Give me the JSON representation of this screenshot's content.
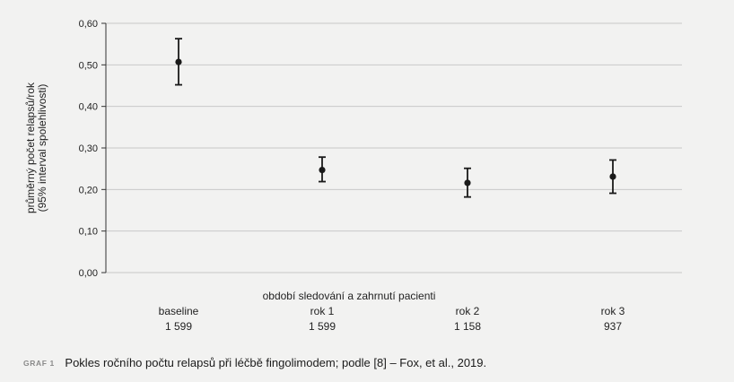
{
  "chart_data": {
    "type": "scatter",
    "ylabel_line1": "průměrný počet relapsů/rok",
    "ylabel_line2": "(95% interval spolehlivosti)",
    "xlabel": "období sledování a zahrnutí pacienti",
    "ylim": [
      0,
      0.6
    ],
    "yticks": [
      "0,00",
      "0,10",
      "0,20",
      "0,30",
      "0,40",
      "0,50",
      "0,60"
    ],
    "grid": true,
    "colors": {
      "marker": "#1a1a1a",
      "grid": "#c8c8c8"
    },
    "categories": [
      {
        "label": "baseline",
        "patients": "1 599",
        "value": 0.507,
        "ci_low": 0.452,
        "ci_high": 0.563
      },
      {
        "label": "rok 1",
        "patients": "1 599",
        "value": 0.247,
        "ci_low": 0.219,
        "ci_high": 0.278
      },
      {
        "label": "rok 2",
        "patients": "1 158",
        "value": 0.216,
        "ci_low": 0.182,
        "ci_high": 0.251
      },
      {
        "label": "rok 3",
        "patients": "937",
        "value": 0.231,
        "ci_low": 0.191,
        "ci_high": 0.271
      }
    ]
  },
  "caption": {
    "tag": "GRAF 1",
    "text": "Pokles ročního počtu relapsů při léčbě fingolimodem; podle [8] – Fox, et al., 2019."
  }
}
